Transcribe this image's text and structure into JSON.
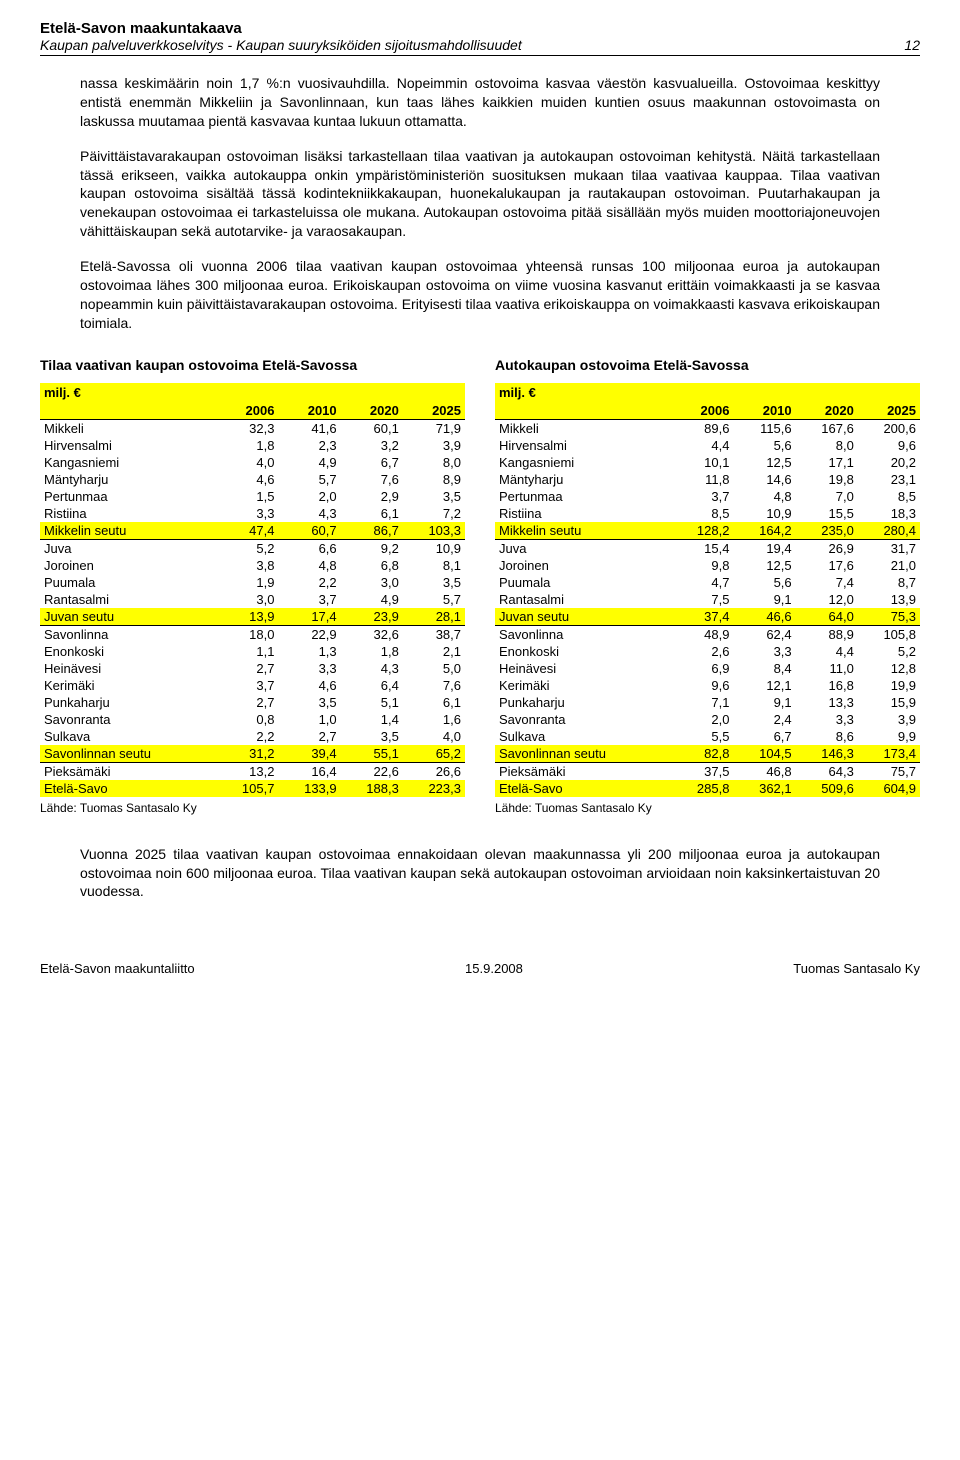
{
  "header": {
    "title": "Etelä-Savon maakuntakaava",
    "subtitle": "Kaupan palveluverkkoselvitys - Kaupan suuryksiköiden sijoitusmahdollisuudet",
    "page": "12"
  },
  "paragraphs": [
    "nassa keskimäärin noin 1,7 %:n vuosivauhdilla. Nopeimmin ostovoima kasvaa väestön kasvualueilla. Ostovoimaa keskittyy entistä enemmän Mikkeliin ja Savonlinnaan, kun taas lähes kaikkien muiden kuntien osuus maakunnan ostovoimasta on laskussa muutamaa pientä kasvavaa kuntaa lukuun ottamatta.",
    "Päivittäistavarakaupan ostovoiman lisäksi tarkastellaan tilaa vaativan ja autokaupan ostovoiman kehitystä. Näitä tarkastellaan tässä erikseen, vaikka autokauppa onkin ympäristöministeriön suosituksen mukaan tilaa vaativaa kauppaa. Tilaa vaativan kaupan ostovoima sisältää tässä kodintekniikkakaupan, huonekalukaupan ja rautakaupan ostovoiman. Puutarhakaupan ja venekaupan ostovoimaa ei tarkasteluissa ole mukana. Autokaupan ostovoima pitää sisällään myös muiden moottoriajoneuvojen vähittäiskaupan sekä autotarvike- ja varaosakaupan.",
    "Etelä-Savossa oli vuonna 2006 tilaa vaativan kaupan ostovoimaa yhteensä runsas 100 miljoonaa euroa ja autokaupan ostovoimaa lähes 300 miljoonaa euroa. Erikoiskaupan ostovoima on viime vuosina kasvanut erittäin voimakkaasti ja se kasvaa nopeammin kuin päivittäistavarakaupan ostovoima. Erityisesti tilaa vaativa erikoiskauppa on voimakkaasti kasvava erikoiskaupan toimiala."
  ],
  "bottom_para": "Vuonna 2025 tilaa vaativan kaupan ostovoimaa ennakoidaan olevan maakunnassa yli 200 miljoonaa euroa ja autokaupan ostovoimaa noin 600 miljoonaa euroa. Tilaa vaativan kaupan sekä autokaupan ostovoiman arvioidaan noin kaksinkertaistuvan 20 vuodessa.",
  "table_left": {
    "caption": "Tilaa vaativan kaupan ostovoima Etelä-Savossa",
    "unit": "milj. €",
    "years": [
      "2006",
      "2010",
      "2020",
      "2025"
    ],
    "rows": [
      {
        "n": "Mikkeli",
        "v": [
          "32,3",
          "41,6",
          "60,1",
          "71,9"
        ]
      },
      {
        "n": "Hirvensalmi",
        "v": [
          "1,8",
          "2,3",
          "3,2",
          "3,9"
        ]
      },
      {
        "n": "Kangasniemi",
        "v": [
          "4,0",
          "4,9",
          "6,7",
          "8,0"
        ]
      },
      {
        "n": "Mäntyharju",
        "v": [
          "4,6",
          "5,7",
          "7,6",
          "8,9"
        ]
      },
      {
        "n": "Pertunmaa",
        "v": [
          "1,5",
          "2,0",
          "2,9",
          "3,5"
        ]
      },
      {
        "n": "Ristiina",
        "v": [
          "3,3",
          "4,3",
          "6,1",
          "7,2"
        ]
      },
      {
        "n": "Mikkelin seutu",
        "v": [
          "47,4",
          "60,7",
          "86,7",
          "103,3"
        ],
        "hl": true
      },
      {
        "n": "Juva",
        "v": [
          "5,2",
          "6,6",
          "9,2",
          "10,9"
        ],
        "sep": true
      },
      {
        "n": "Joroinen",
        "v": [
          "3,8",
          "4,8",
          "6,8",
          "8,1"
        ]
      },
      {
        "n": "Puumala",
        "v": [
          "1,9",
          "2,2",
          "3,0",
          "3,5"
        ]
      },
      {
        "n": "Rantasalmi",
        "v": [
          "3,0",
          "3,7",
          "4,9",
          "5,7"
        ]
      },
      {
        "n": "Juvan seutu",
        "v": [
          "13,9",
          "17,4",
          "23,9",
          "28,1"
        ],
        "hl": true
      },
      {
        "n": "Savonlinna",
        "v": [
          "18,0",
          "22,9",
          "32,6",
          "38,7"
        ],
        "sep": true
      },
      {
        "n": "Enonkoski",
        "v": [
          "1,1",
          "1,3",
          "1,8",
          "2,1"
        ]
      },
      {
        "n": "Heinävesi",
        "v": [
          "2,7",
          "3,3",
          "4,3",
          "5,0"
        ]
      },
      {
        "n": "Kerimäki",
        "v": [
          "3,7",
          "4,6",
          "6,4",
          "7,6"
        ]
      },
      {
        "n": "Punkaharju",
        "v": [
          "2,7",
          "3,5",
          "5,1",
          "6,1"
        ]
      },
      {
        "n": "Savonranta",
        "v": [
          "0,8",
          "1,0",
          "1,4",
          "1,6"
        ]
      },
      {
        "n": "Sulkava",
        "v": [
          "2,2",
          "2,7",
          "3,5",
          "4,0"
        ]
      },
      {
        "n": "Savonlinnan seutu",
        "v": [
          "31,2",
          "39,4",
          "55,1",
          "65,2"
        ],
        "hl": true
      },
      {
        "n": "Pieksämäki",
        "v": [
          "13,2",
          "16,4",
          "22,6",
          "26,6"
        ],
        "sep": true
      },
      {
        "n": "Etelä-Savo",
        "v": [
          "105,7",
          "133,9",
          "188,3",
          "223,3"
        ],
        "hl": true
      }
    ],
    "source": "Lähde: Tuomas Santasalo Ky"
  },
  "table_right": {
    "caption": "Autokaupan ostovoima Etelä-Savossa",
    "unit": "milj. €",
    "years": [
      "2006",
      "2010",
      "2020",
      "2025"
    ],
    "rows": [
      {
        "n": "Mikkeli",
        "v": [
          "89,6",
          "115,6",
          "167,6",
          "200,6"
        ]
      },
      {
        "n": "Hirvensalmi",
        "v": [
          "4,4",
          "5,6",
          "8,0",
          "9,6"
        ]
      },
      {
        "n": "Kangasniemi",
        "v": [
          "10,1",
          "12,5",
          "17,1",
          "20,2"
        ]
      },
      {
        "n": "Mäntyharju",
        "v": [
          "11,8",
          "14,6",
          "19,8",
          "23,1"
        ]
      },
      {
        "n": "Pertunmaa",
        "v": [
          "3,7",
          "4,8",
          "7,0",
          "8,5"
        ]
      },
      {
        "n": "Ristiina",
        "v": [
          "8,5",
          "10,9",
          "15,5",
          "18,3"
        ]
      },
      {
        "n": "Mikkelin seutu",
        "v": [
          "128,2",
          "164,2",
          "235,0",
          "280,4"
        ],
        "hl": true
      },
      {
        "n": "Juva",
        "v": [
          "15,4",
          "19,4",
          "26,9",
          "31,7"
        ],
        "sep": true
      },
      {
        "n": "Joroinen",
        "v": [
          "9,8",
          "12,5",
          "17,6",
          "21,0"
        ]
      },
      {
        "n": "Puumala",
        "v": [
          "4,7",
          "5,6",
          "7,4",
          "8,7"
        ]
      },
      {
        "n": "Rantasalmi",
        "v": [
          "7,5",
          "9,1",
          "12,0",
          "13,9"
        ]
      },
      {
        "n": "Juvan seutu",
        "v": [
          "37,4",
          "46,6",
          "64,0",
          "75,3"
        ],
        "hl": true
      },
      {
        "n": "Savonlinna",
        "v": [
          "48,9",
          "62,4",
          "88,9",
          "105,8"
        ],
        "sep": true
      },
      {
        "n": "Enonkoski",
        "v": [
          "2,6",
          "3,3",
          "4,4",
          "5,2"
        ]
      },
      {
        "n": "Heinävesi",
        "v": [
          "6,9",
          "8,4",
          "11,0",
          "12,8"
        ]
      },
      {
        "n": "Kerimäki",
        "v": [
          "9,6",
          "12,1",
          "16,8",
          "19,9"
        ]
      },
      {
        "n": "Punkaharju",
        "v": [
          "7,1",
          "9,1",
          "13,3",
          "15,9"
        ]
      },
      {
        "n": "Savonranta",
        "v": [
          "2,0",
          "2,4",
          "3,3",
          "3,9"
        ]
      },
      {
        "n": "Sulkava",
        "v": [
          "5,5",
          "6,7",
          "8,6",
          "9,9"
        ]
      },
      {
        "n": "Savonlinnan seutu",
        "v": [
          "82,8",
          "104,5",
          "146,3",
          "173,4"
        ],
        "hl": true
      },
      {
        "n": "Pieksämäki",
        "v": [
          "37,5",
          "46,8",
          "64,3",
          "75,7"
        ],
        "sep": true
      },
      {
        "n": "Etelä-Savo",
        "v": [
          "285,8",
          "362,1",
          "509,6",
          "604,9"
        ],
        "hl": true
      }
    ],
    "source": "Lähde: Tuomas Santasalo Ky"
  },
  "footer": {
    "left": "Etelä-Savon maakuntaliitto",
    "center": "15.9.2008",
    "right": "Tuomas Santasalo Ky"
  }
}
